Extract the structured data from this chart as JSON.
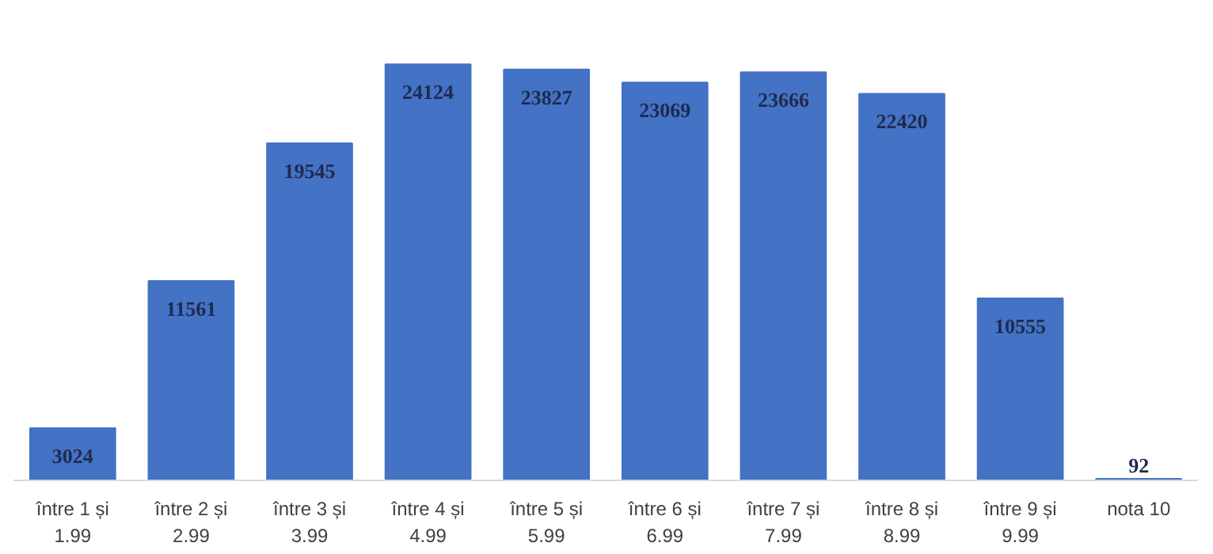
{
  "chart_data": {
    "type": "bar",
    "categories": [
      "între 1 și\n1.99",
      "între 2 și\n2.99",
      "între 3 și\n3.99",
      "între 4 și\n4.99",
      "între 5 și\n5.99",
      "între 6 și\n6.99",
      "între 7 și\n7.99",
      "între 8 și\n8.99",
      "între 9 și\n9.99",
      "nota 10"
    ],
    "values": [
      3024,
      11561,
      19545,
      24124,
      23827,
      23069,
      23666,
      22420,
      10555,
      92
    ],
    "color": "#4472c4",
    "data_labels": true,
    "grid": false
  }
}
